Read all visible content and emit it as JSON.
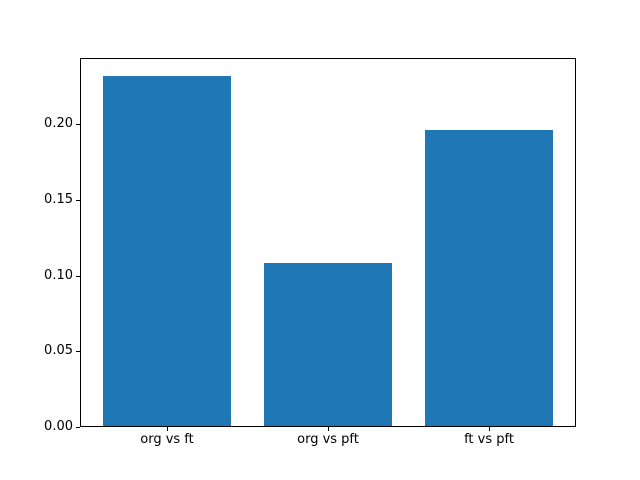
{
  "chart_data": {
    "type": "bar",
    "title": "",
    "xlabel": "",
    "ylabel": "",
    "categories": [
      "org vs ft",
      "org vs pft",
      "ft vs pft"
    ],
    "values": [
      0.232,
      0.108,
      0.196
    ],
    "x_positions": [
      0,
      1,
      2
    ],
    "bar_width": 0.8,
    "bar_color": "#1f77b4",
    "xlim": [
      -0.54,
      2.54
    ],
    "ylim": [
      0,
      0.2436
    ],
    "yticks": [
      0.0,
      0.05,
      0.1,
      0.15,
      0.2
    ],
    "ytick_labels": [
      "0.00",
      "0.05",
      "0.10",
      "0.15",
      "0.20"
    ],
    "grid": false,
    "legend": null,
    "background_color": "#ffffff",
    "spine_color": "#000000",
    "text_color": "#000000"
  }
}
